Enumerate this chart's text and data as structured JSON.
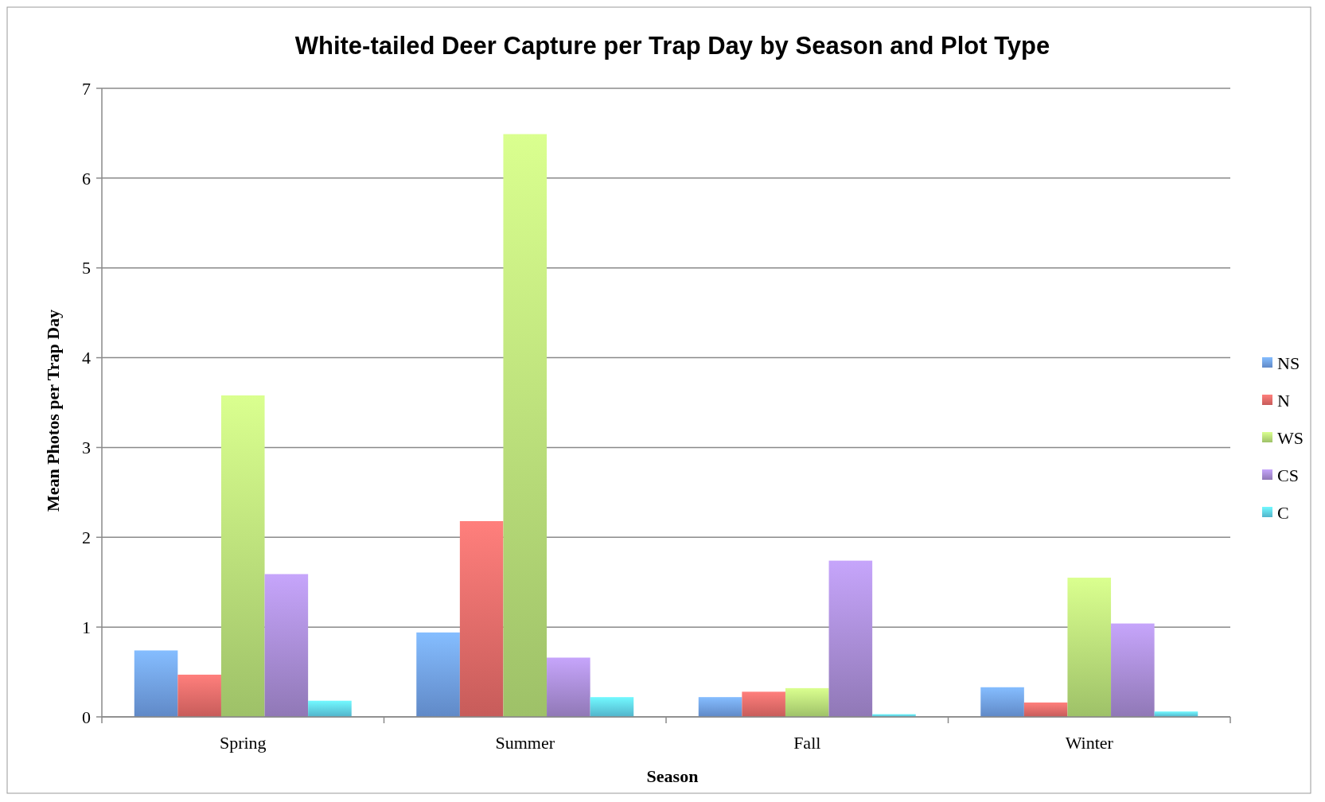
{
  "chart_data": {
    "type": "bar",
    "title": "White-tailed Deer Capture per Trap Day by Season and Plot Type",
    "xlabel": "Season",
    "ylabel": "Mean Photos per Trap Day",
    "categories": [
      "Spring",
      "Summer",
      "Fall",
      "Winter"
    ],
    "series": [
      {
        "name": "NS",
        "color": "#6f9ee6",
        "values": [
          0.74,
          0.94,
          0.22,
          0.33
        ]
      },
      {
        "name": "N",
        "color": "#e56a68",
        "values": [
          0.47,
          2.18,
          0.28,
          0.16
        ]
      },
      {
        "name": "WS",
        "color": "#b6df78",
        "values": [
          3.58,
          6.49,
          0.32,
          1.55
        ]
      },
      {
        "name": "CS",
        "color": "#a68ad2",
        "values": [
          1.59,
          0.66,
          1.74,
          1.04
        ]
      },
      {
        "name": "C",
        "color": "#5fd0ea",
        "values": [
          0.18,
          0.22,
          0.03,
          0.06
        ]
      }
    ],
    "ylim": [
      0,
      7
    ],
    "yticks": [
      0,
      1,
      2,
      3,
      4,
      5,
      6,
      7
    ],
    "grid": "y",
    "legend": "right"
  }
}
